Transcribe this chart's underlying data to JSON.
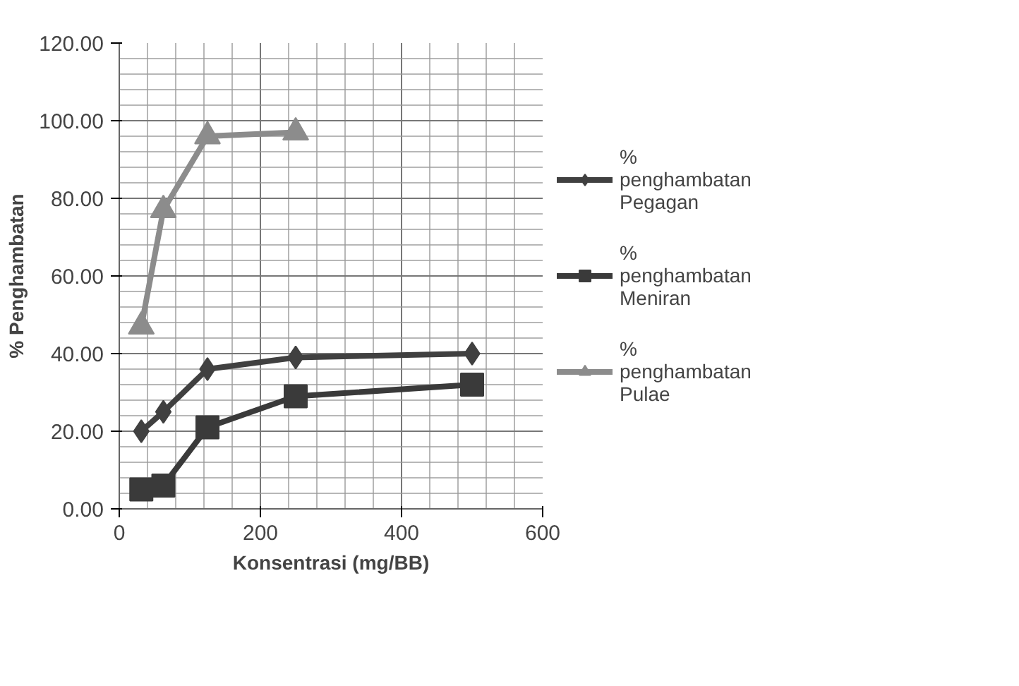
{
  "chart_data": {
    "type": "line",
    "xlabel": "Konsentrasi (mg/BB)",
    "ylabel": "% Penghambatan",
    "xlim": [
      0,
      600
    ],
    "xticks": [
      0,
      200,
      400,
      600
    ],
    "ylim": [
      0,
      120
    ],
    "yticks": [
      {
        "value": 0,
        "label": "0.00"
      },
      {
        "value": 20,
        "label": "20.00"
      },
      {
        "value": 40,
        "label": "40.00"
      },
      {
        "value": 60,
        "label": "60.00"
      },
      {
        "value": 80,
        "label": "80.00"
      },
      {
        "value": 100,
        "label": "100.00"
      },
      {
        "value": 120,
        "label": "120.00"
      }
    ],
    "grid": true,
    "legend": "right",
    "series": [
      {
        "name": "% penghambatan Pegagan",
        "color": "#404040",
        "marker": "diamond",
        "x": [
          31.25,
          62.5,
          125,
          250,
          500
        ],
        "values": [
          20,
          25,
          36,
          39,
          40
        ]
      },
      {
        "name": "% penghambatan Meniran",
        "color": "#3a3a3a",
        "marker": "square",
        "x": [
          31.25,
          62.5,
          125,
          250,
          500
        ],
        "values": [
          5,
          6,
          21,
          29,
          32
        ]
      },
      {
        "name": "% penghambatan Pulae",
        "color": "#8c8c8c",
        "marker": "triangle",
        "x": [
          31.25,
          62.5,
          125,
          250
        ],
        "values": [
          47,
          77,
          96,
          97
        ]
      }
    ]
  }
}
